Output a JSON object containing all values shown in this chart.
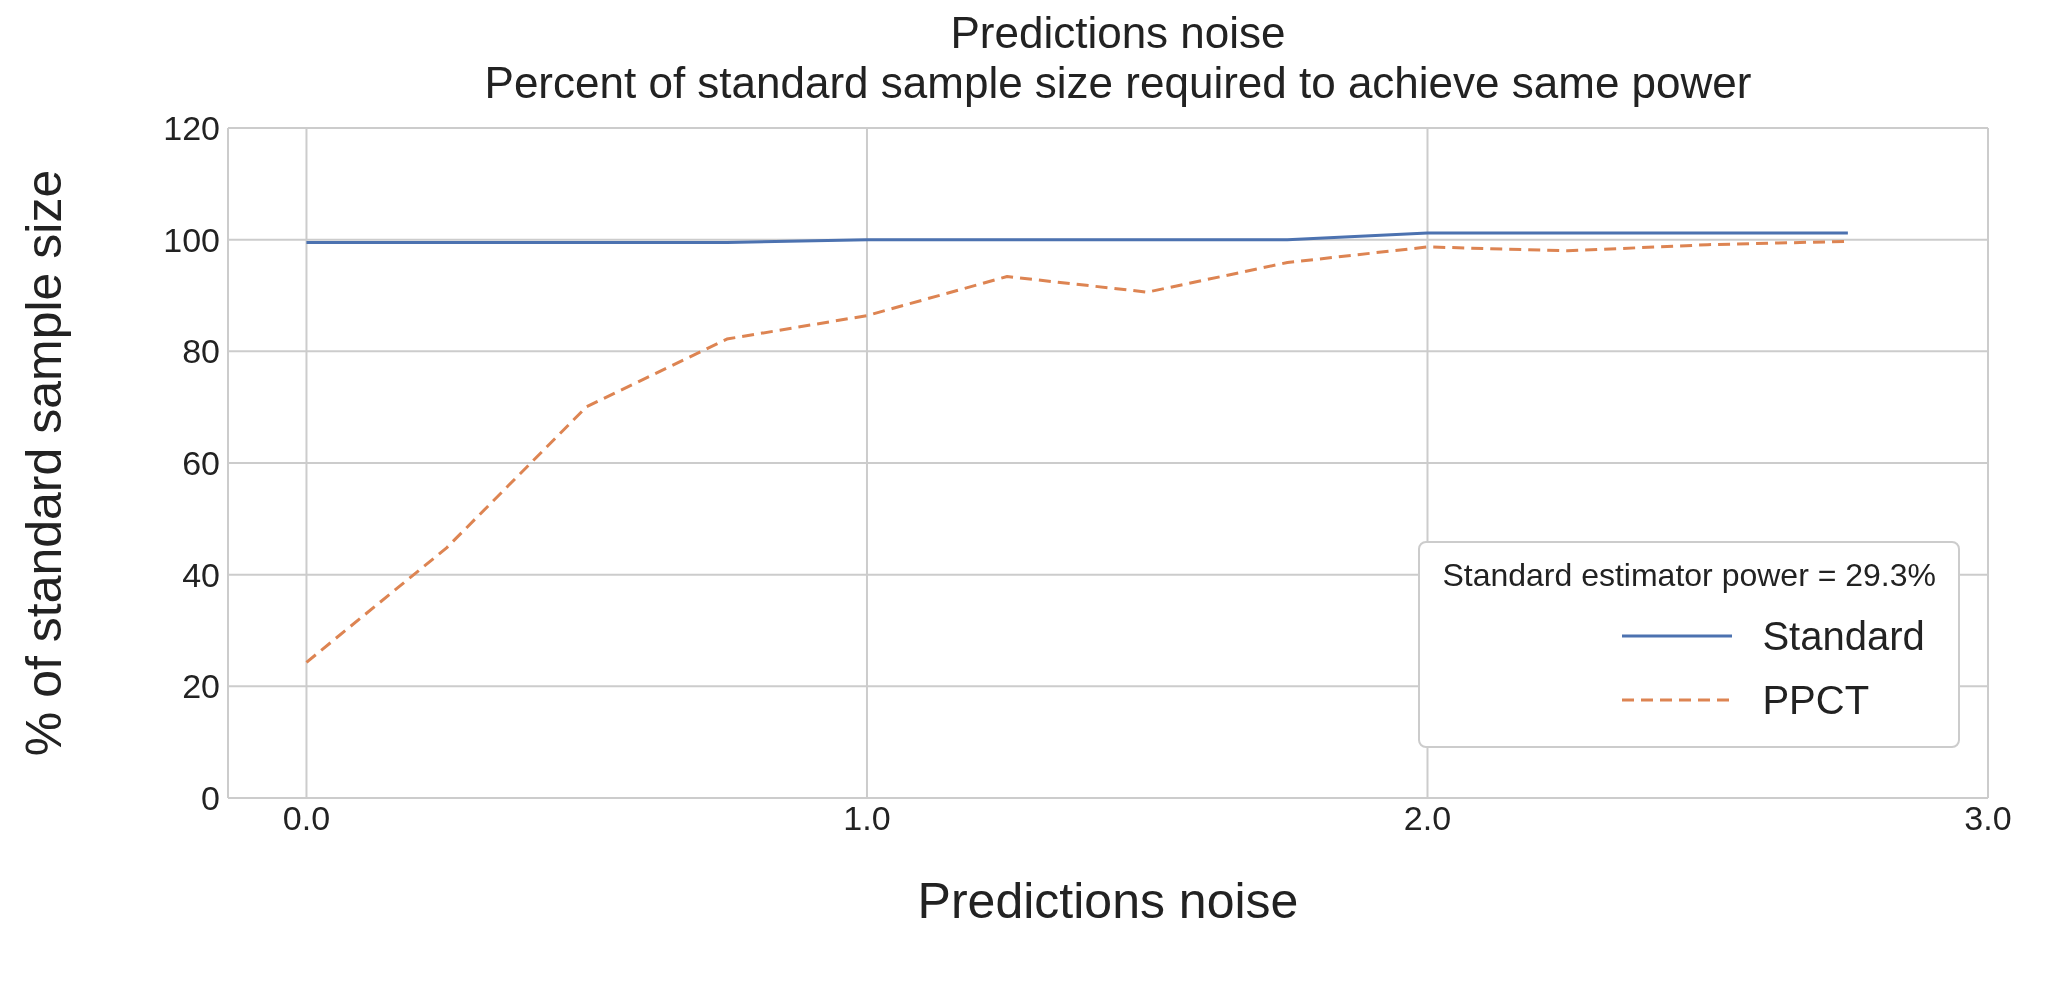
{
  "chart_data": {
    "type": "line",
    "title": "Predictions noise",
    "subtitle": "Percent of standard sample size required to achieve same power",
    "xlabel": "Predictions noise",
    "ylabel": "% of standard sample size",
    "legend_title": "Standard estimator power = 29.3%",
    "x": [
      0,
      0.25,
      0.5,
      0.75,
      1.0,
      1.25,
      1.5,
      1.75,
      2.0,
      2.25,
      2.5,
      2.75
    ],
    "series": [
      {
        "name": "Standard",
        "color": "#4c72b0",
        "line_style": "solid",
        "values": [
          99.5,
          99.5,
          99.5,
          99.5,
          100,
          100,
          100,
          100,
          101.2,
          101.2,
          101.2,
          101.2
        ]
      },
      {
        "name": "PPCT",
        "color": "#dd8452",
        "line_style": "dashed",
        "values": [
          24.3,
          44.8,
          70.1,
          82.2,
          86.4,
          93.4,
          90.6,
          95.9,
          98.7,
          98.0,
          99.1,
          99.7
        ]
      }
    ],
    "xlim": [
      -0.14,
      3.0
    ],
    "xticks": [
      {
        "value": 0,
        "label": "0.0"
      },
      {
        "value": 1,
        "label": "1.0"
      },
      {
        "value": 2,
        "label": "2.0"
      },
      {
        "value": 3,
        "label": "3.0"
      }
    ],
    "ylim": [
      0,
      120
    ],
    "yticks": [
      0,
      20,
      40,
      60,
      80,
      100,
      120
    ],
    "grid": true,
    "legend": "bottom right",
    "marker": "none"
  }
}
